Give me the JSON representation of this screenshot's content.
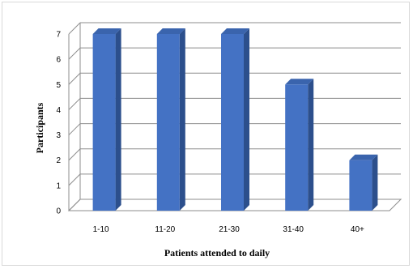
{
  "chart_data": {
    "type": "bar",
    "categories": [
      "1-10",
      "11-20",
      "21-30",
      "31-40",
      "40+"
    ],
    "values": [
      7,
      7,
      7,
      5,
      2
    ],
    "xlabel": "Patients attended to daily",
    "ylabel": "Participants",
    "ylim": [
      0,
      7
    ],
    "yticks": [
      0,
      1,
      2,
      3,
      4,
      5,
      6,
      7
    ],
    "grid": true,
    "legend": "none",
    "style": "3d-column",
    "colors": {
      "bar_front": "#4472c4",
      "bar_side": "#2c4f8c",
      "bar_top": "#3a64ad",
      "grid": "#8c8c8c",
      "axis": "#8c8c8c"
    }
  }
}
